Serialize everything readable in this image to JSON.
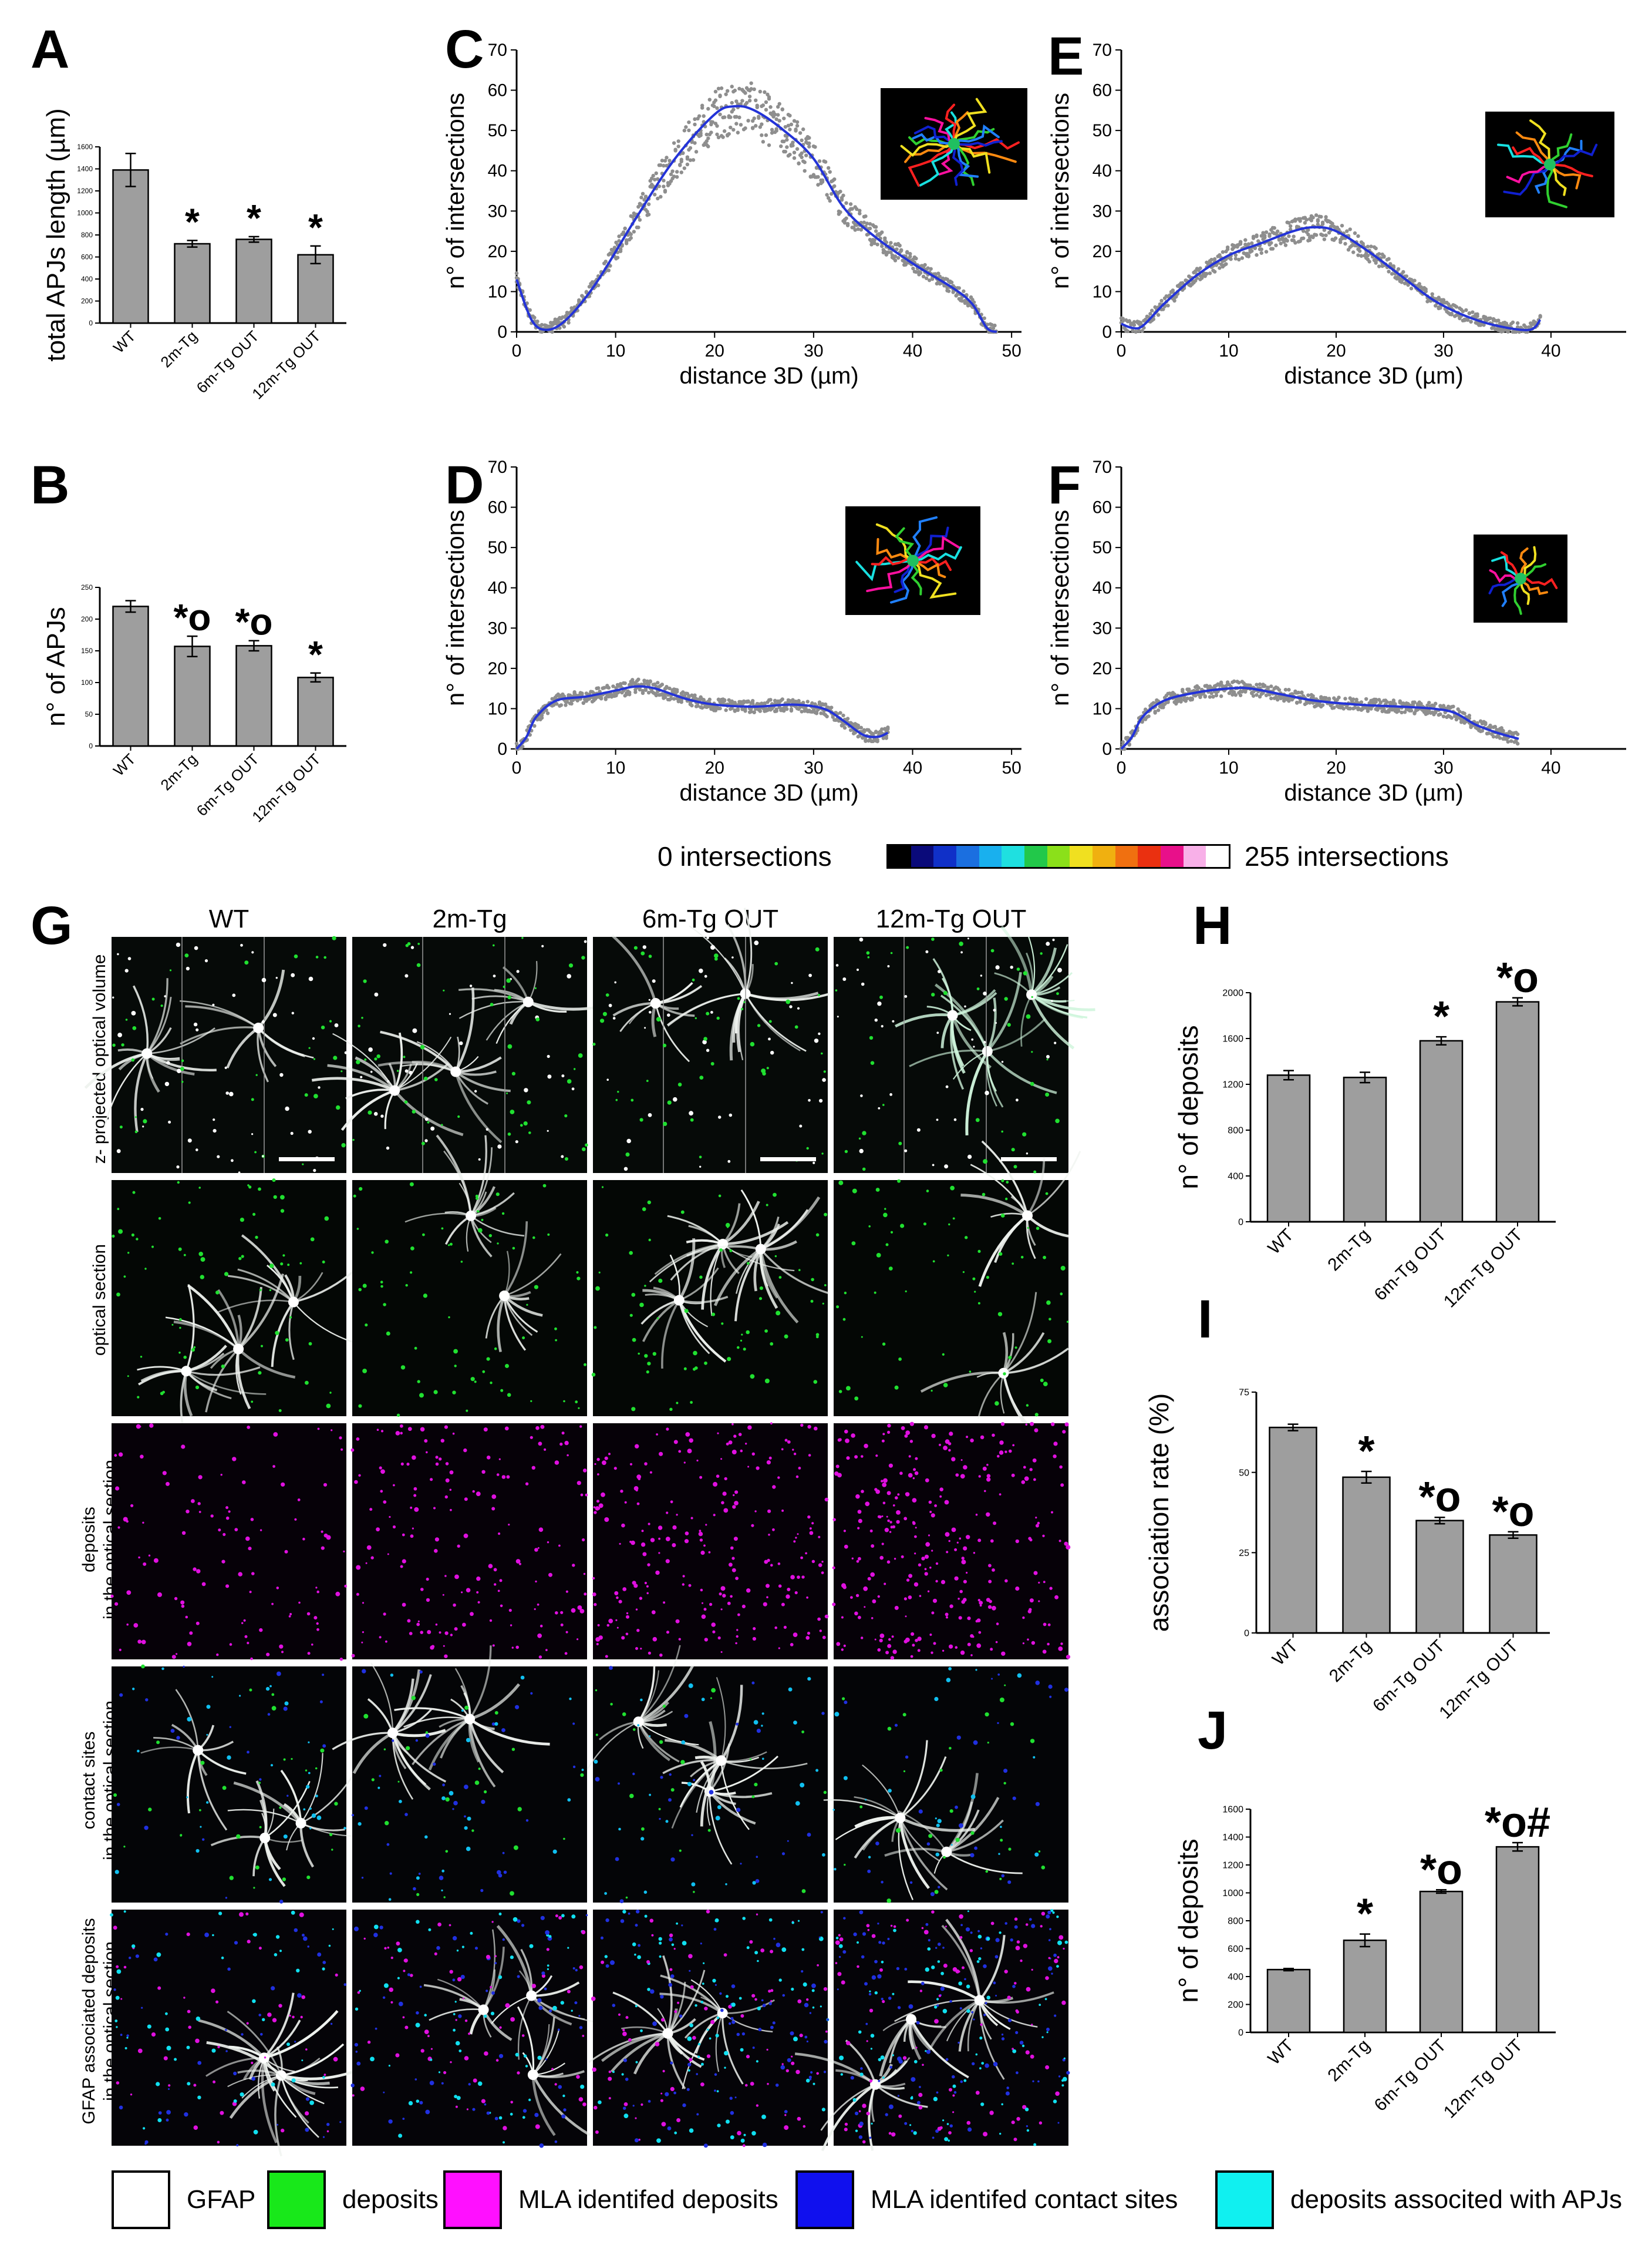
{
  "panels": {
    "A": "A",
    "B": "B",
    "C": "C",
    "D": "D",
    "E": "E",
    "F": "F",
    "G": "G",
    "H": "H",
    "I": "I",
    "J": "J"
  },
  "colorbar": {
    "left_label": "0 intersections",
    "right_label": "255 intersections",
    "colors": [
      "#000000",
      "#0a0a7a",
      "#1030c8",
      "#1b6fe0",
      "#19b0ee",
      "#1fe0e0",
      "#22c84a",
      "#8be01a",
      "#f0e020",
      "#f0b010",
      "#f07010",
      "#ea3010",
      "#e8108a",
      "#f8b0e8",
      "#ffffff"
    ]
  },
  "micrographs": {
    "columns": [
      "WT",
      "2m-Tg",
      "6m-Tg OUT",
      "12m-Tg OUT"
    ],
    "rows": [
      [
        "z- projected optical  volume"
      ],
      [
        "optical section"
      ],
      [
        "deposits",
        "in the optical section"
      ],
      [
        "contact sites",
        "in the optical section"
      ],
      [
        "GFAP associated deposits",
        "in the optical section"
      ]
    ]
  },
  "legend": [
    {
      "label": "GFAP",
      "color": "#ffffff"
    },
    {
      "label": "deposits",
      "color": "#18e81a"
    },
    {
      "label": "MLA identifed deposits",
      "color": "#ff10ff"
    },
    {
      "label": "MLA identifed contact sites",
      "color": "#1010ee"
    },
    {
      "label": "deposits associted with APJs",
      "color": "#10f0f0"
    }
  ],
  "chart_data": [
    {
      "panel": "A",
      "type": "bar",
      "ylabel": "total APJs length (µm)",
      "categories": [
        "WT",
        "2m-Tg",
        "6m-Tg OUT",
        "12m-Tg OUT"
      ],
      "values": [
        1390,
        720,
        760,
        620
      ],
      "errors": [
        150,
        30,
        25,
        80
      ],
      "annotations": [
        "",
        "*",
        "*",
        "*"
      ],
      "ylim": [
        0,
        1600
      ],
      "yticks": [
        0,
        200,
        400,
        600,
        800,
        1000,
        1200,
        1400,
        1600
      ],
      "bar_color": "#9e9e9e"
    },
    {
      "panel": "B",
      "type": "bar",
      "ylabel": "n° of APJs",
      "categories": [
        "WT",
        "2m-Tg",
        "6m-Tg OUT",
        "12m-Tg OUT"
      ],
      "values": [
        220,
        157,
        158,
        108
      ],
      "errors": [
        9,
        16,
        8,
        7
      ],
      "annotations": [
        "",
        "*o",
        "*o",
        "*"
      ],
      "ylim": [
        0,
        250
      ],
      "yticks": [
        0,
        50,
        100,
        150,
        200,
        250
      ],
      "bar_color": "#9e9e9e"
    },
    {
      "panel": "C",
      "type": "scatter",
      "xlabel": "distance 3D (µm)",
      "ylabel": "n° of intersections",
      "xlim": [
        0,
        51
      ],
      "ylim": [
        0,
        70
      ],
      "xticks": [
        0,
        10,
        20,
        30,
        40,
        50
      ],
      "yticks": [
        0,
        10,
        20,
        30,
        40,
        50,
        60,
        70
      ],
      "fit": [
        [
          0,
          13
        ],
        [
          1.5,
          3
        ],
        [
          3,
          0.5
        ],
        [
          5,
          3
        ],
        [
          8,
          12
        ],
        [
          12,
          28
        ],
        [
          16,
          43
        ],
        [
          20,
          54
        ],
        [
          22,
          56
        ],
        [
          24,
          55
        ],
        [
          27,
          50
        ],
        [
          30,
          43
        ],
        [
          33,
          31
        ],
        [
          36,
          24
        ],
        [
          40,
          17
        ],
        [
          44,
          11
        ],
        [
          46,
          7
        ],
        [
          47.5,
          1
        ],
        [
          48.5,
          0
        ]
      ],
      "inset": "astrocyte-reconstruction-large"
    },
    {
      "panel": "D",
      "type": "scatter",
      "xlabel": "distance 3D (µm)",
      "ylabel": "n° of intersections",
      "xlim": [
        0,
        51
      ],
      "ylim": [
        0,
        70
      ],
      "xticks": [
        0,
        10,
        20,
        30,
        40,
        50
      ],
      "yticks": [
        0,
        10,
        20,
        30,
        40,
        50,
        60,
        70
      ],
      "fit": [
        [
          0,
          0
        ],
        [
          1,
          3
        ],
        [
          2,
          8
        ],
        [
          4,
          12
        ],
        [
          7,
          13
        ],
        [
          10,
          14.5
        ],
        [
          12,
          15.5
        ],
        [
          14,
          15
        ],
        [
          17,
          12.5
        ],
        [
          20,
          11
        ],
        [
          24,
          10.5
        ],
        [
          28,
          11
        ],
        [
          31,
          10
        ],
        [
          33,
          7
        ],
        [
          35,
          3.5
        ],
        [
          36.5,
          3
        ],
        [
          37.5,
          4
        ]
      ],
      "inset": "astrocyte-reconstruction-small"
    },
    {
      "panel": "E",
      "type": "scatter",
      "xlabel": "distance 3D (µm)",
      "ylabel": "n° of intersections",
      "xlim": [
        0,
        47
      ],
      "ylim": [
        0,
        70
      ],
      "xticks": [
        0,
        10,
        20,
        30,
        40
      ],
      "yticks": [
        0,
        10,
        20,
        30,
        40,
        50,
        60,
        70
      ],
      "fit": [
        [
          0,
          2
        ],
        [
          1,
          1
        ],
        [
          2,
          1.5
        ],
        [
          4,
          7
        ],
        [
          7,
          14
        ],
        [
          10,
          19
        ],
        [
          13,
          22
        ],
        [
          16,
          25
        ],
        [
          18,
          26
        ],
        [
          20,
          25
        ],
        [
          23,
          20
        ],
        [
          26,
          14
        ],
        [
          29,
          8
        ],
        [
          32,
          4
        ],
        [
          35,
          1.5
        ],
        [
          38,
          0.5
        ],
        [
          39,
          3
        ]
      ],
      "inset": "astrocyte-reconstruction-medium"
    },
    {
      "panel": "F",
      "type": "scatter",
      "xlabel": "distance 3D (µm)",
      "ylabel": "n° of intersections",
      "xlim": [
        0,
        47
      ],
      "ylim": [
        0,
        70
      ],
      "xticks": [
        0,
        10,
        20,
        30,
        40
      ],
      "yticks": [
        0,
        10,
        20,
        30,
        40,
        50,
        60,
        70
      ],
      "fit": [
        [
          0,
          0
        ],
        [
          1,
          3
        ],
        [
          2,
          8
        ],
        [
          4,
          12
        ],
        [
          7,
          14
        ],
        [
          10,
          15
        ],
        [
          12,
          15
        ],
        [
          15,
          13.5
        ],
        [
          18,
          12
        ],
        [
          22,
          11
        ],
        [
          26,
          10.5
        ],
        [
          29,
          10
        ],
        [
          31,
          9
        ],
        [
          33,
          6
        ],
        [
          35,
          4
        ],
        [
          37,
          2.5
        ]
      ],
      "inset": "astrocyte-reconstruction-small-2"
    },
    {
      "panel": "H",
      "type": "bar",
      "ylabel": "n° of deposits",
      "categories": [
        "WT",
        "2m-Tg",
        "6m-Tg OUT",
        "12m-Tg OUT"
      ],
      "values": [
        1280,
        1260,
        1580,
        1920
      ],
      "errors": [
        40,
        45,
        35,
        35
      ],
      "annotations": [
        "",
        "",
        "*",
        "*o"
      ],
      "ylim": [
        0,
        2000
      ],
      "yticks": [
        0,
        400,
        800,
        1200,
        1600,
        2000
      ],
      "bar_color": "#9e9e9e"
    },
    {
      "panel": "I",
      "type": "bar",
      "ylabel": "association rate (%)",
      "categories": [
        "WT",
        "2m-Tg",
        "6m-Tg OUT",
        "12m-Tg OUT"
      ],
      "values": [
        64,
        48.5,
        35,
        30.5
      ],
      "errors": [
        1,
        1.8,
        1,
        1
      ],
      "annotations": [
        "",
        "*",
        "*o",
        "*o"
      ],
      "ylim": [
        0,
        75
      ],
      "yticks": [
        0,
        25,
        50,
        75
      ],
      "bar_color": "#9e9e9e"
    },
    {
      "panel": "J",
      "type": "bar",
      "ylabel": "n° of deposits",
      "categories": [
        "WT",
        "2m-Tg",
        "6m-Tg OUT",
        "12m-Tg OUT"
      ],
      "values": [
        450,
        660,
        1010,
        1330
      ],
      "errors": [
        8,
        45,
        12,
        30
      ],
      "annotations": [
        "",
        "*",
        "*o",
        "*o#"
      ],
      "ylim": [
        0,
        1600
      ],
      "yticks": [
        0,
        200,
        400,
        600,
        800,
        1000,
        1200,
        1400,
        1600
      ],
      "bar_color": "#9e9e9e"
    }
  ]
}
